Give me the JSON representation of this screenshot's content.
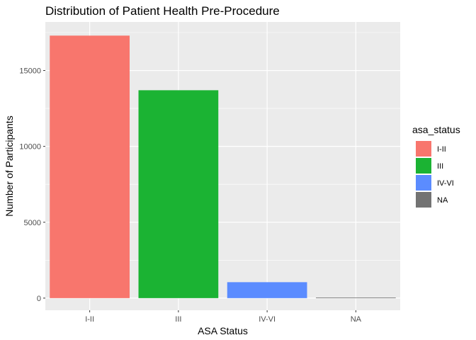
{
  "chart_data": {
    "type": "bar",
    "title": "Distribution of Patient Health Pre-Procedure",
    "xlabel": "ASA Status",
    "ylabel": "Number of Participants",
    "categories": [
      "I-II",
      "III",
      "IV-VI",
      "NA"
    ],
    "values": [
      17300,
      13700,
      1050,
      40
    ],
    "colors": [
      "#F8766D",
      "#1BB333",
      "#5B8CFF",
      "#737373"
    ],
    "ylim": [
      -800,
      18200
    ],
    "yticks": [
      0,
      5000,
      10000,
      15000
    ],
    "ytick_labels": [
      "0",
      "5000",
      "10000",
      "15000"
    ],
    "grid": true,
    "legend": {
      "title": "asa_status",
      "placement": "right",
      "entries": [
        "I-II",
        "III",
        "IV-VI",
        "NA"
      ]
    }
  }
}
